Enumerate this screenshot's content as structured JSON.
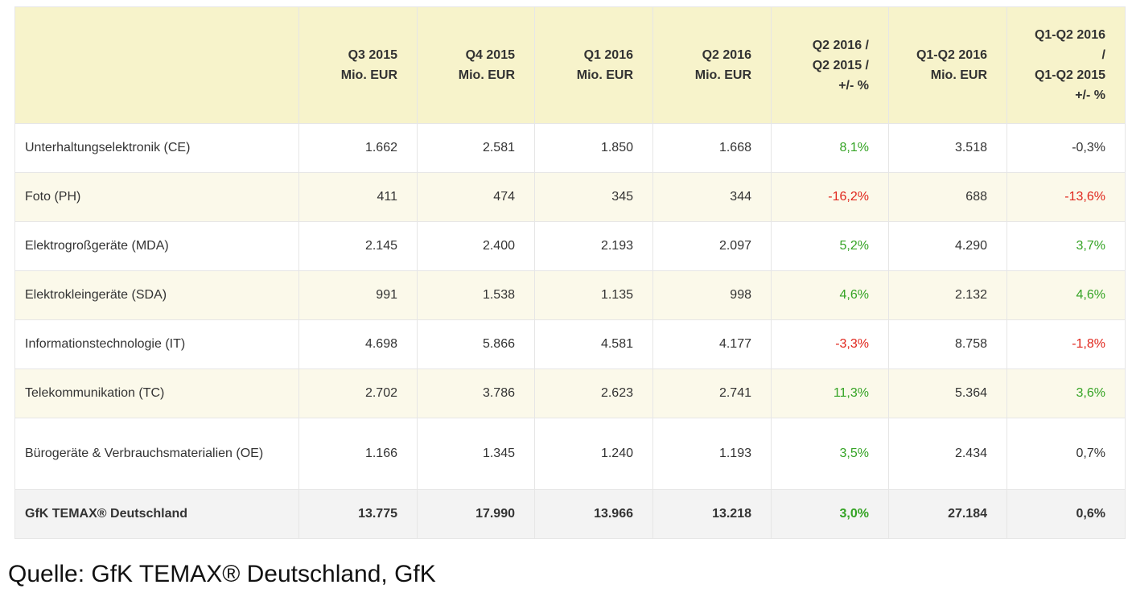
{
  "chart_data": {
    "type": "table",
    "columns": [
      {
        "lines": [
          ""
        ]
      },
      {
        "lines": [
          "Q3 2015",
          "Mio. EUR"
        ]
      },
      {
        "lines": [
          "Q4 2015",
          "Mio. EUR"
        ]
      },
      {
        "lines": [
          "Q1 2016",
          "Mio. EUR"
        ]
      },
      {
        "lines": [
          "Q2 2016",
          "Mio. EUR"
        ]
      },
      {
        "lines": [
          "Q2 2016 /",
          "Q2 2015 /",
          "+/- %"
        ]
      },
      {
        "lines": [
          "Q1-Q2 2016",
          "Mio. EUR"
        ]
      },
      {
        "lines": [
          "Q1-Q2 2016",
          "/",
          "Q1-Q2 2015",
          "+/- %"
        ]
      }
    ],
    "rows": [
      {
        "label": "Unterhaltungselektronik (CE)",
        "values": [
          "1.662",
          "2.581",
          "1.850",
          "1.668",
          "8,1%",
          "3.518",
          "-0,3%"
        ]
      },
      {
        "label": "Foto (PH)",
        "values": [
          "411",
          "474",
          "345",
          "344",
          "-16,2%",
          "688",
          "-13,6%"
        ]
      },
      {
        "label": "Elektrogroßgeräte (MDA)",
        "values": [
          "2.145",
          "2.400",
          "2.193",
          "2.097",
          "5,2%",
          "4.290",
          "3,7%"
        ]
      },
      {
        "label": "Elektrokleingeräte (SDA)",
        "values": [
          "991",
          "1.538",
          "1.135",
          "998",
          "4,6%",
          "2.132",
          "4,6%"
        ]
      },
      {
        "label": "Informationstechnologie (IT)",
        "values": [
          "4.698",
          "5.866",
          "4.581",
          "4.177",
          "-3,3%",
          "8.758",
          "-1,8%"
        ]
      },
      {
        "label": "Telekommunikation (TC)",
        "values": [
          "2.702",
          "3.786",
          "2.623",
          "2.741",
          "11,3%",
          "5.364",
          "3,6%"
        ]
      },
      {
        "label": "Bürogeräte & Verbrauchsmaterialien (OE)",
        "values": [
          "1.166",
          "1.345",
          "1.240",
          "1.193",
          "3,5%",
          "2.434",
          "0,7%"
        ]
      }
    ],
    "total": {
      "label": "GfK TEMAX® Deutschland",
      "values": [
        "13.775",
        "17.990",
        "13.966",
        "13.218",
        "3,0%",
        "27.184",
        "0,6%"
      ]
    },
    "colors": {
      "header_bg": "#f7f3cb",
      "row_alt_bg": "#fbf9ea",
      "total_bg": "#f3f3f3",
      "positive": "#34a324",
      "negative": "#e0261c"
    }
  },
  "source": "Quelle: GfK TEMAX® Deutschland, GfK"
}
